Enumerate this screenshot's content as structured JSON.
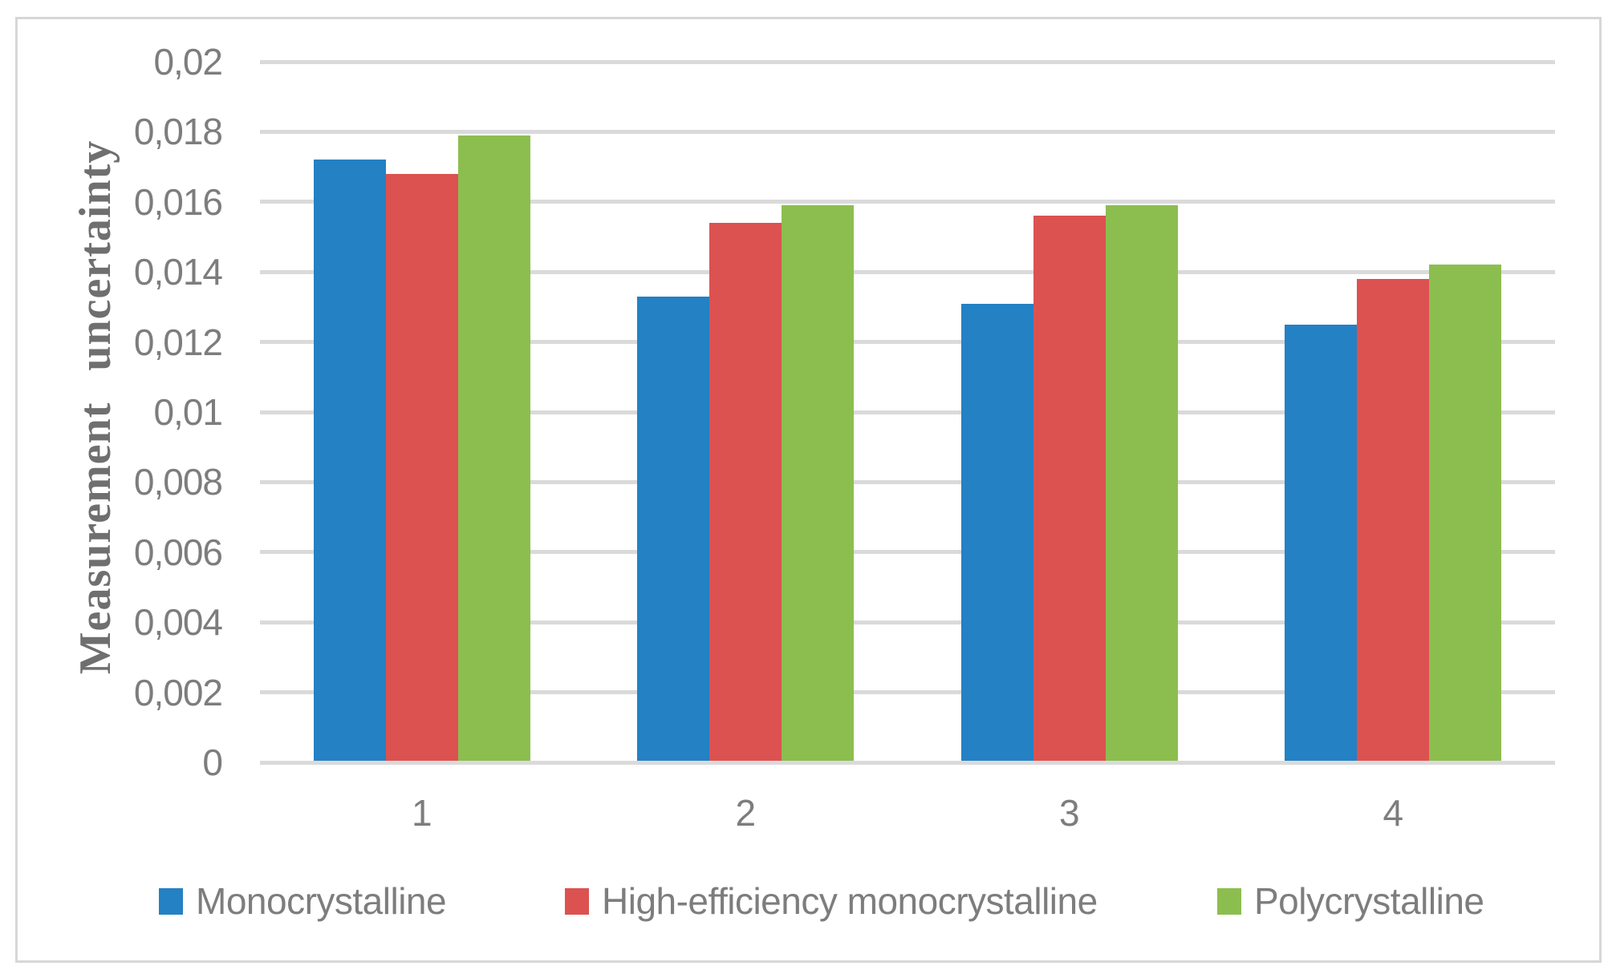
{
  "chart": {
    "colors": {
      "grid": "#DADADA",
      "axis_text": "#7D7D7D",
      "axis_title_text": "#6F6F6F",
      "frame_border": "#D7D7D7"
    }
  },
  "chart_data": {
    "type": "bar",
    "title": "",
    "xlabel": "",
    "ylabel": "Measurement uncertainty",
    "categories": [
      "1",
      "2",
      "3",
      "4"
    ],
    "series": [
      {
        "name": "Monocrystalline",
        "color": "#2481C4",
        "values": [
          0.0172,
          0.0133,
          0.0131,
          0.0125
        ]
      },
      {
        "name": "High-efficiency monocrystalline",
        "color": "#DC5250",
        "values": [
          0.0168,
          0.0154,
          0.0156,
          0.0138
        ]
      },
      {
        "name": "Polycrystalline",
        "color": "#8CBE4F",
        "values": [
          0.0179,
          0.0159,
          0.0159,
          0.0142
        ]
      }
    ],
    "ylim": [
      0,
      0.02
    ],
    "y_tick_step": 0.002,
    "y_tick_labels": [
      "0",
      "0,002",
      "0,004",
      "0,006",
      "0,008",
      "0,01",
      "0,012",
      "0,014",
      "0,016",
      "0,018",
      "0,02"
    ],
    "decimal_separator": ",",
    "grid": true,
    "legend_position": "bottom"
  }
}
